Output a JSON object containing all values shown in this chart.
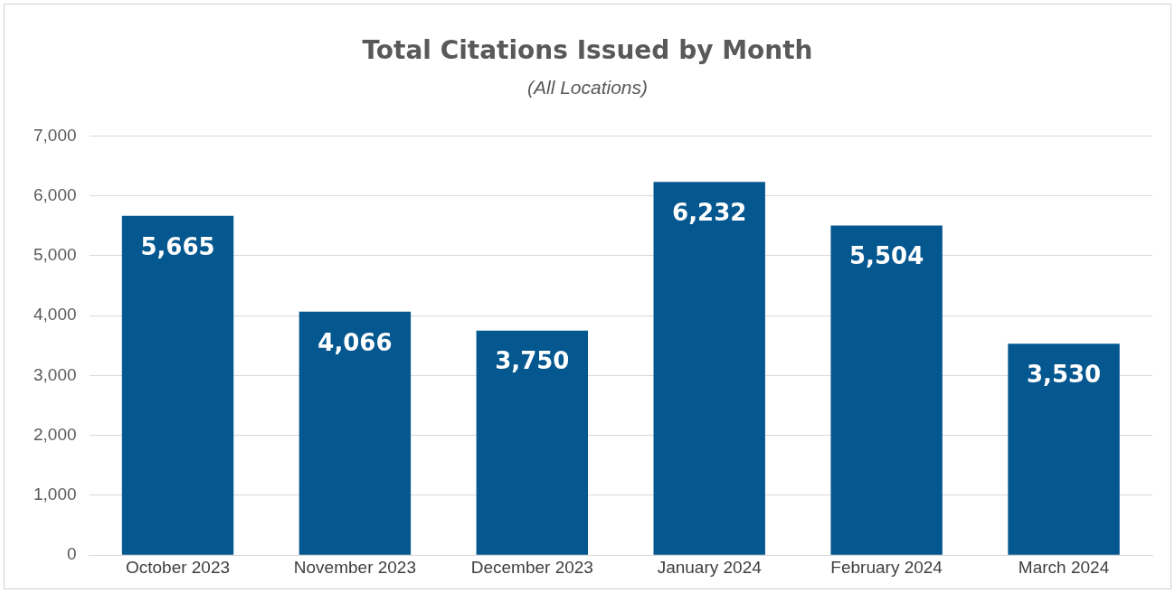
{
  "chart_data": {
    "type": "bar",
    "title": "Total Citations Issued by Month",
    "subtitle": "(All Locations)",
    "categories": [
      "October 2023",
      "November 2023",
      "December 2023",
      "January 2024",
      "February 2024",
      "March 2024"
    ],
    "values": [
      5665,
      4066,
      3750,
      6232,
      5504,
      3530
    ],
    "value_labels": [
      "5,665",
      "4,066",
      "3,750",
      "6,232",
      "5,504",
      "3,530"
    ],
    "color": "#04578f",
    "ylim": [
      0,
      7000
    ],
    "yticks": [
      0,
      {
        "value": 1000,
        "label": "1,000"
      },
      {
        "value": 2000,
        "label": "2,000"
      },
      {
        "value": 3000,
        "label": "3,000"
      },
      {
        "value": 4000,
        "label": "4,000"
      },
      {
        "value": 5000,
        "label": "5,000"
      },
      {
        "value": 6000,
        "label": "6,000"
      },
      {
        "value": 7000,
        "label": "7,000"
      }
    ],
    "grid": "y"
  }
}
